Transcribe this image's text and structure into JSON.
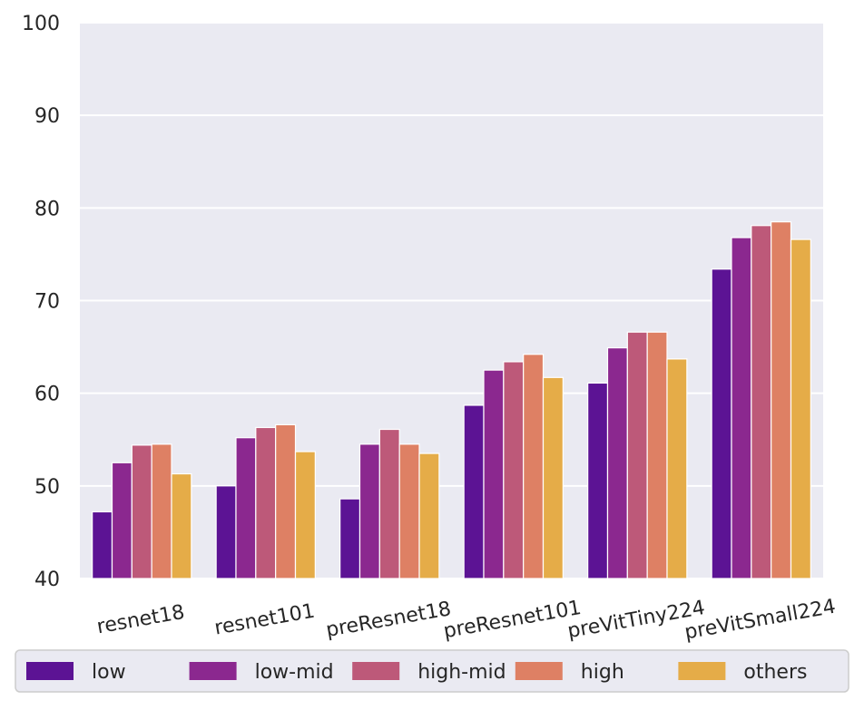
{
  "chart_data": {
    "type": "bar",
    "title": "",
    "xlabel": "",
    "ylabel": "",
    "ylim": [
      40,
      100
    ],
    "yticks": [
      "40",
      "50",
      "60",
      "70",
      "80",
      "90",
      "100"
    ],
    "categories": [
      "resnet18",
      "resnet101",
      "preResnet18",
      "preResnet101",
      "preVitTiny224",
      "preVitSmall224"
    ],
    "series": [
      {
        "name": "low",
        "color": "#5c1394",
        "values": [
          47.2,
          50.0,
          48.6,
          58.7,
          61.1,
          73.4
        ]
      },
      {
        "name": "low-mid",
        "color": "#8b288f",
        "values": [
          52.5,
          55.2,
          54.5,
          62.5,
          64.9,
          76.8
        ]
      },
      {
        "name": "high-mid",
        "color": "#bd5979",
        "values": [
          54.4,
          56.3,
          56.1,
          63.4,
          66.6,
          78.1
        ]
      },
      {
        "name": "high",
        "color": "#de8064",
        "values": [
          54.5,
          56.6,
          54.5,
          64.2,
          66.6,
          78.5
        ]
      },
      {
        "name": "others",
        "color": "#e5ac48",
        "values": [
          51.3,
          53.7,
          53.5,
          61.7,
          63.7,
          76.6
        ]
      }
    ],
    "grid": true,
    "legend_position": "bottom",
    "background": "#eaeaf2"
  }
}
